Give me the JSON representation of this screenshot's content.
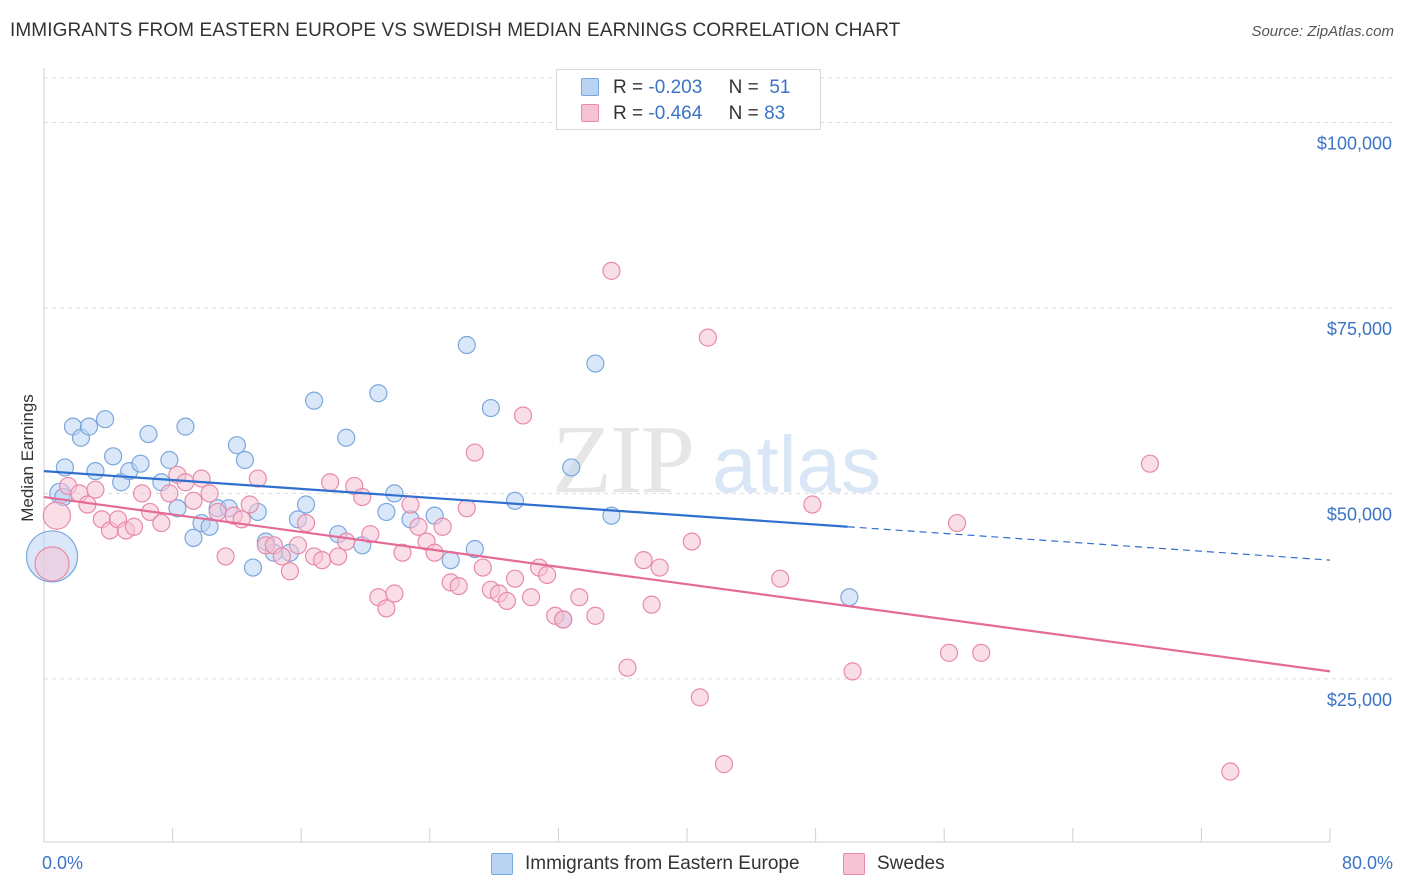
{
  "title": "IMMIGRANTS FROM EASTERN EUROPE VS SWEDISH MEDIAN EARNINGS CORRELATION CHART",
  "source": "Source: ZipAtlas.com",
  "watermark": "ZIPatlas",
  "legend": {
    "rows": [
      {
        "r_label": "R =",
        "r_value": "-0.203",
        "n_label": "N =",
        "n_value": "51"
      },
      {
        "r_label": "R =",
        "r_value": "-0.464",
        "n_label": "N =",
        "n_value": "83"
      }
    ]
  },
  "colors": {
    "blue_fill": "#b9d3f3",
    "blue_stroke": "#7aa7dd",
    "blue_line": "#2f6fcf",
    "pink_fill": "#f6c3d4",
    "pink_stroke": "#e88aaa",
    "pink_line": "#e46b96",
    "axis_text": "#3b74c7"
  },
  "chart_data": {
    "type": "scatter",
    "xlabel": "",
    "ylabel": "Median Earnings",
    "xlim": [
      0,
      80
    ],
    "ylim": [
      3000,
      106000
    ],
    "x_tick_labels": [
      "0.0%",
      "80.0%"
    ],
    "y_ticks": [
      {
        "value": 100000,
        "label": "$100,000"
      },
      {
        "value": 75000,
        "label": "$75,000"
      },
      {
        "value": 50000,
        "label": "$50,000"
      },
      {
        "value": 25000,
        "label": "$25,000"
      }
    ],
    "grid": "horizontal dashed",
    "legend_position": "bottom",
    "series": [
      {
        "name": "Immigrants from Eastern Europe",
        "color": "blue",
        "trend": {
          "x0": 0,
          "y0": 53000,
          "x1": 50,
          "y1": 45500,
          "dash_to_x": 80,
          "dash_to_y": 41000
        },
        "points": [
          [
            0.5,
            41500,
            3
          ],
          [
            1.0,
            50000,
            1.2
          ],
          [
            1.3,
            53500,
            1
          ],
          [
            1.8,
            59000,
            1
          ],
          [
            2.3,
            57500,
            1
          ],
          [
            2.8,
            59000,
            1
          ],
          [
            3.2,
            53000,
            1
          ],
          [
            3.8,
            60000,
            1
          ],
          [
            4.3,
            55000,
            1
          ],
          [
            4.8,
            51500,
            1
          ],
          [
            5.3,
            53000,
            1
          ],
          [
            6.0,
            54000,
            1
          ],
          [
            6.5,
            58000,
            1
          ],
          [
            7.3,
            51500,
            1
          ],
          [
            7.8,
            54500,
            1
          ],
          [
            8.3,
            48000,
            1
          ],
          [
            8.8,
            59000,
            1
          ],
          [
            9.3,
            44000,
            1
          ],
          [
            9.8,
            46000,
            1
          ],
          [
            10.3,
            45500,
            1
          ],
          [
            10.8,
            48000,
            1
          ],
          [
            11.5,
            48000,
            1
          ],
          [
            12.0,
            56500,
            1
          ],
          [
            12.5,
            54500,
            1
          ],
          [
            13.0,
            40000,
            1
          ],
          [
            13.3,
            47500,
            1
          ],
          [
            13.8,
            43500,
            1
          ],
          [
            14.3,
            42000,
            1
          ],
          [
            15.3,
            42000,
            1
          ],
          [
            15.8,
            46500,
            1
          ],
          [
            16.3,
            48500,
            1
          ],
          [
            16.8,
            62500,
            1
          ],
          [
            18.3,
            44500,
            1
          ],
          [
            18.8,
            57500,
            1
          ],
          [
            19.8,
            43000,
            1
          ],
          [
            20.8,
            63500,
            1
          ],
          [
            21.3,
            47500,
            1
          ],
          [
            21.8,
            50000,
            1
          ],
          [
            22.8,
            46500,
            1
          ],
          [
            24.3,
            47000,
            1
          ],
          [
            25.3,
            41000,
            1
          ],
          [
            26.3,
            70000,
            1
          ],
          [
            26.8,
            42500,
            1
          ],
          [
            27.8,
            61500,
            1
          ],
          [
            29.3,
            49000,
            1
          ],
          [
            32.3,
            33000,
            1
          ],
          [
            32.8,
            53500,
            1
          ],
          [
            34.3,
            67500,
            1
          ],
          [
            35.3,
            47000,
            1
          ],
          [
            50.1,
            36000,
            1
          ],
          [
            1.2,
            49500,
            1
          ]
        ]
      },
      {
        "name": "Swedes",
        "color": "pink",
        "trend": {
          "x0": 0,
          "y0": 49500,
          "x1": 80,
          "y1": 26000
        },
        "points": [
          [
            0.5,
            40500,
            2
          ],
          [
            0.8,
            47000,
            1.6
          ],
          [
            1.5,
            51000,
            1
          ],
          [
            2.2,
            50000,
            1
          ],
          [
            2.7,
            48500,
            1
          ],
          [
            3.2,
            50500,
            1
          ],
          [
            3.6,
            46500,
            1
          ],
          [
            4.1,
            45000,
            1
          ],
          [
            4.6,
            46500,
            1
          ],
          [
            5.1,
            45000,
            1
          ],
          [
            5.6,
            45500,
            1
          ],
          [
            6.1,
            50000,
            1
          ],
          [
            6.6,
            47500,
            1
          ],
          [
            7.3,
            46000,
            1
          ],
          [
            7.8,
            50000,
            1
          ],
          [
            8.3,
            52500,
            1
          ],
          [
            8.8,
            51500,
            1
          ],
          [
            9.3,
            49000,
            1
          ],
          [
            9.8,
            52000,
            1
          ],
          [
            10.3,
            50000,
            1
          ],
          [
            10.8,
            47500,
            1
          ],
          [
            11.3,
            41500,
            1
          ],
          [
            11.8,
            47000,
            1
          ],
          [
            12.3,
            46500,
            1
          ],
          [
            12.8,
            48500,
            1
          ],
          [
            13.3,
            52000,
            1
          ],
          [
            13.8,
            43000,
            1
          ],
          [
            14.3,
            43000,
            1
          ],
          [
            14.8,
            41500,
            1
          ],
          [
            15.3,
            39500,
            1
          ],
          [
            15.8,
            43000,
            1
          ],
          [
            16.3,
            46000,
            1
          ],
          [
            16.8,
            41500,
            1
          ],
          [
            17.3,
            41000,
            1
          ],
          [
            17.8,
            51500,
            1
          ],
          [
            18.3,
            41500,
            1
          ],
          [
            18.8,
            43500,
            1
          ],
          [
            19.3,
            51000,
            1
          ],
          [
            19.8,
            49500,
            1
          ],
          [
            20.3,
            44500,
            1
          ],
          [
            20.8,
            36000,
            1
          ],
          [
            21.3,
            34500,
            1
          ],
          [
            21.8,
            36500,
            1
          ],
          [
            22.3,
            42000,
            1
          ],
          [
            22.8,
            48500,
            1
          ],
          [
            23.3,
            45500,
            1
          ],
          [
            23.8,
            43500,
            1
          ],
          [
            24.3,
            42000,
            1
          ],
          [
            24.8,
            45500,
            1
          ],
          [
            25.3,
            38000,
            1
          ],
          [
            25.8,
            37500,
            1
          ],
          [
            26.3,
            48000,
            1
          ],
          [
            26.8,
            55500,
            1
          ],
          [
            27.3,
            40000,
            1
          ],
          [
            27.8,
            37000,
            1
          ],
          [
            28.3,
            36500,
            1
          ],
          [
            28.8,
            35500,
            1
          ],
          [
            29.3,
            38500,
            1
          ],
          [
            29.8,
            60500,
            1
          ],
          [
            30.3,
            36000,
            1
          ],
          [
            30.8,
            40000,
            1
          ],
          [
            31.3,
            39000,
            1
          ],
          [
            31.8,
            33500,
            1
          ],
          [
            32.3,
            33000,
            1
          ],
          [
            33.3,
            36000,
            1
          ],
          [
            34.3,
            33500,
            1
          ],
          [
            35.3,
            80000,
            1
          ],
          [
            36.3,
            26500,
            1
          ],
          [
            37.3,
            41000,
            1
          ],
          [
            37.8,
            35000,
            1
          ],
          [
            38.3,
            40000,
            1
          ],
          [
            40.3,
            43500,
            1
          ],
          [
            40.8,
            22500,
            1
          ],
          [
            41.3,
            71000,
            1
          ],
          [
            42.3,
            13500,
            1
          ],
          [
            45.8,
            38500,
            1
          ],
          [
            47.8,
            48500,
            1
          ],
          [
            50.3,
            26000,
            1
          ],
          [
            56.3,
            28500,
            1
          ],
          [
            56.8,
            46000,
            1
          ],
          [
            58.3,
            28500,
            1
          ],
          [
            68.8,
            54000,
            1
          ],
          [
            73.8,
            12500,
            1
          ]
        ]
      }
    ]
  }
}
